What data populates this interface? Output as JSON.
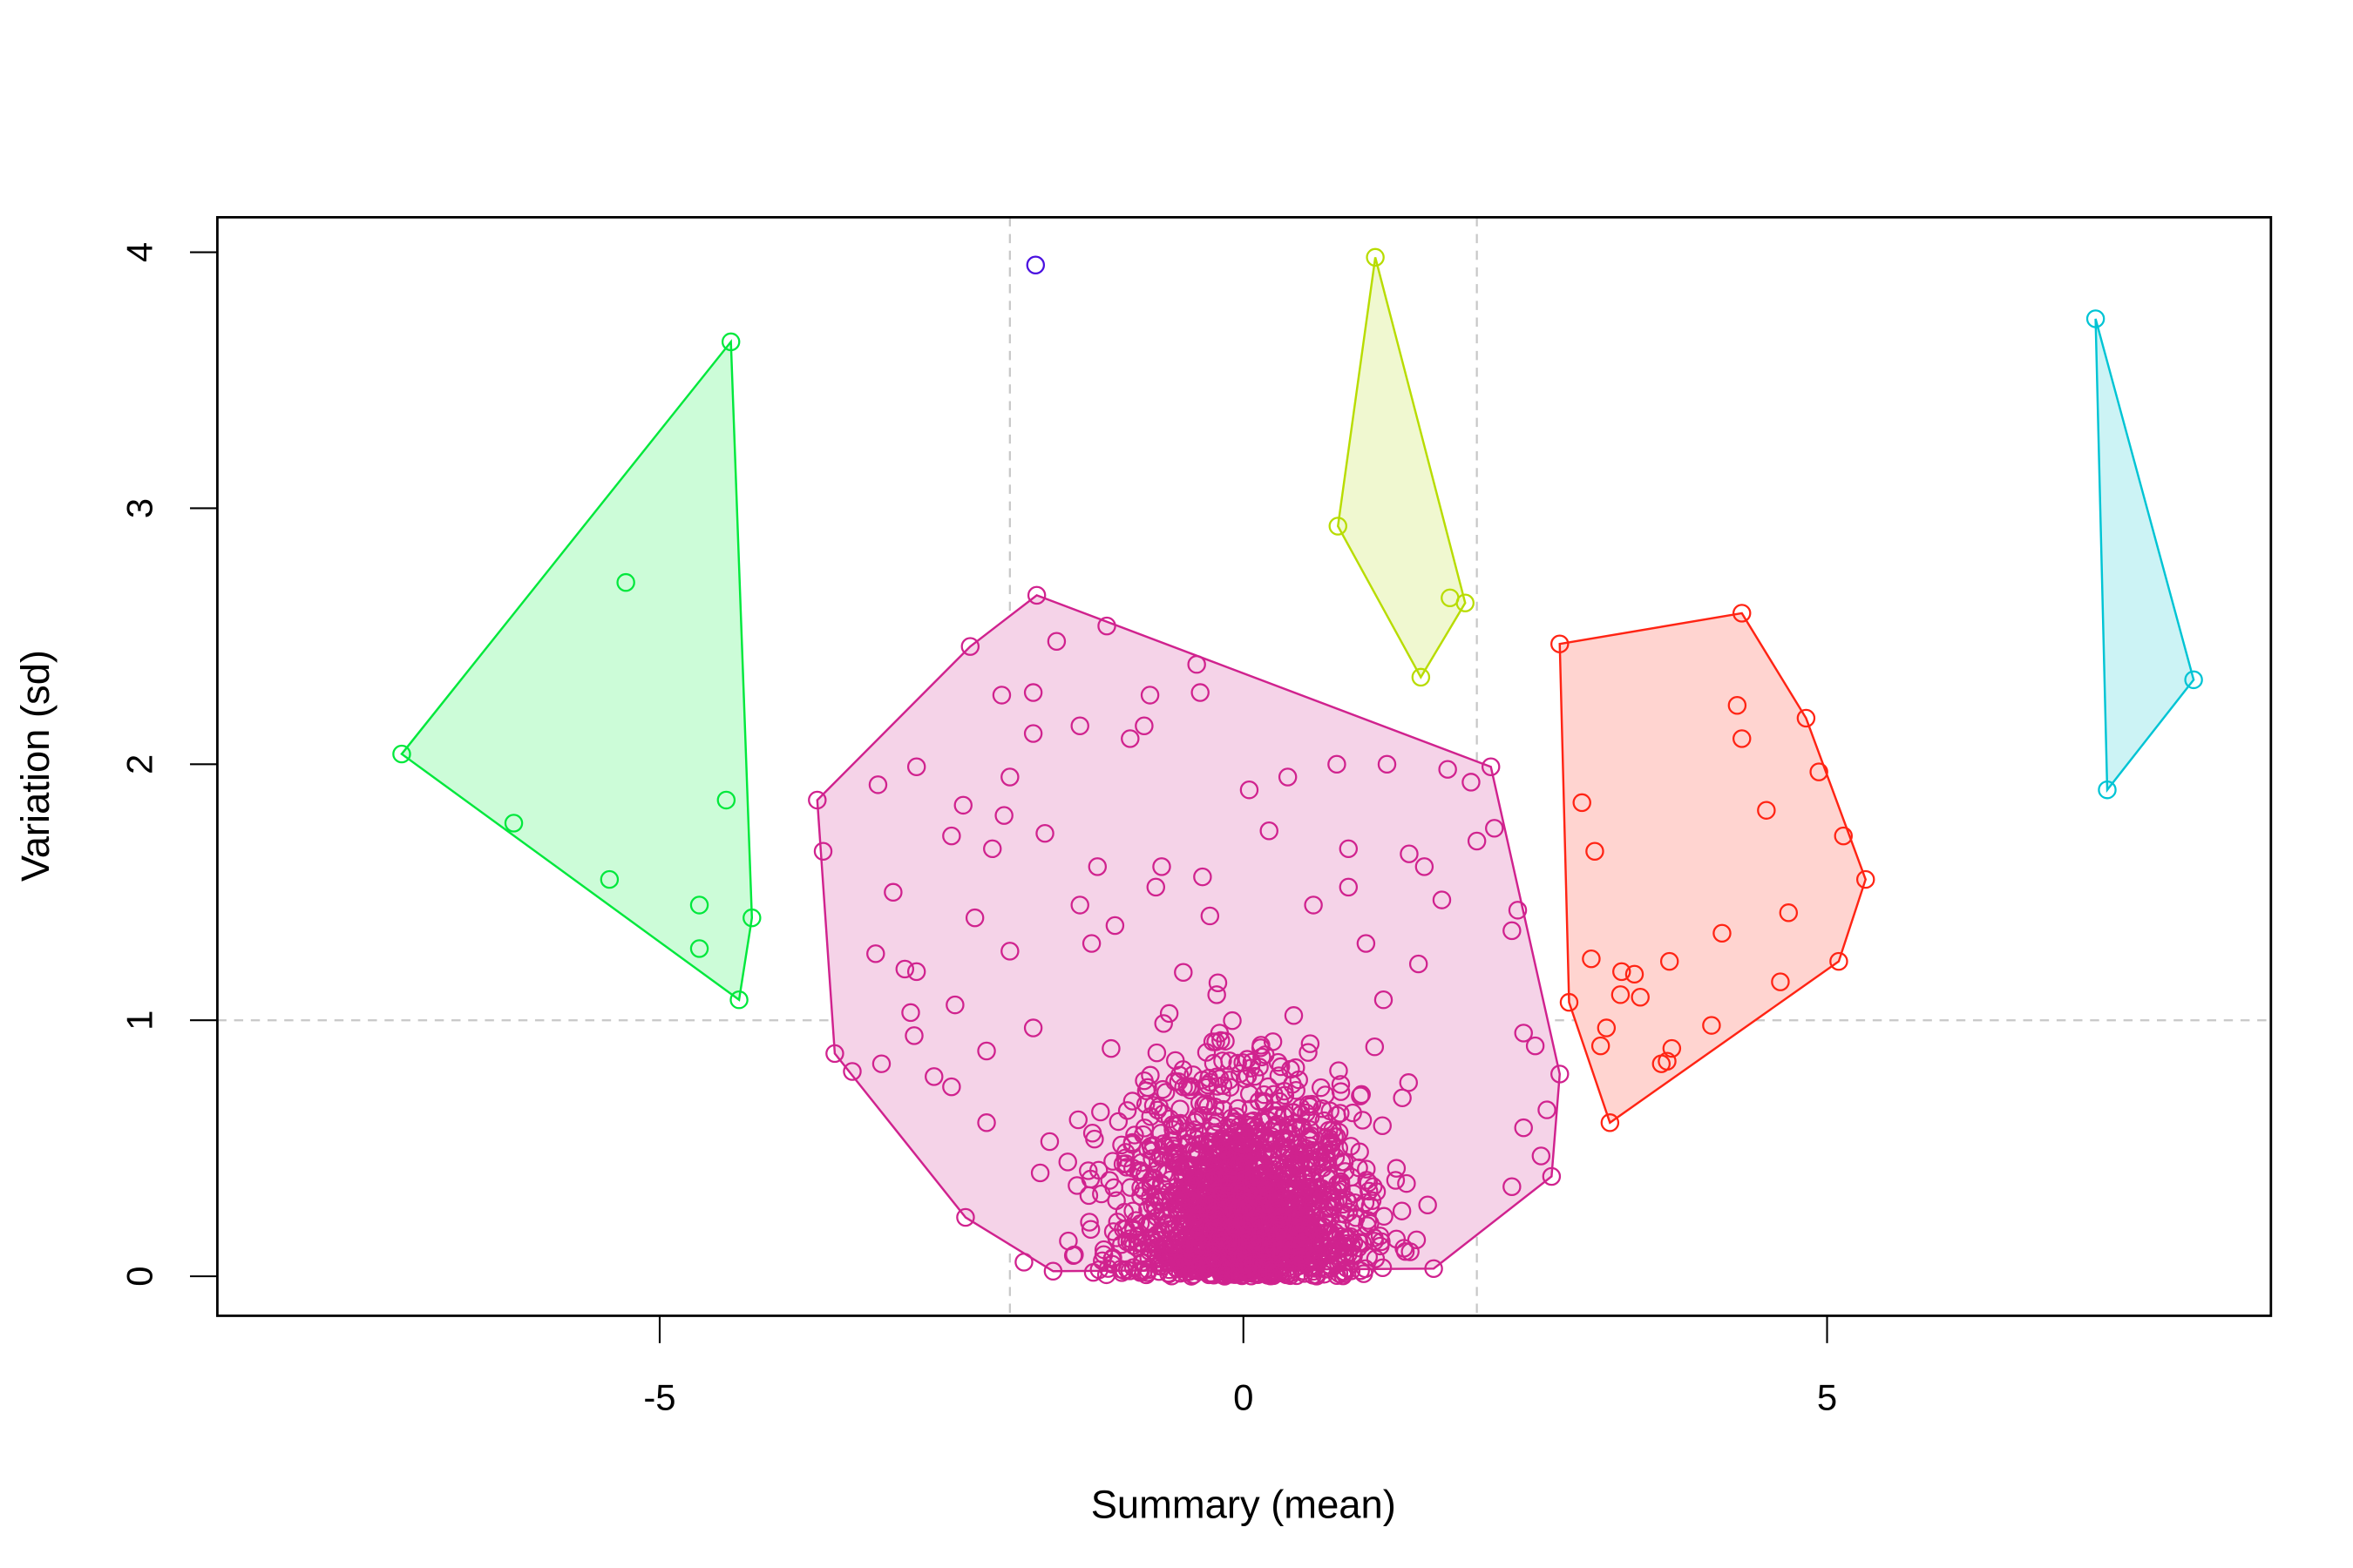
{
  "chart_data": {
    "type": "scatter",
    "title": "",
    "xlabel": "Summary (mean)",
    "ylabel": "Variation (sd)",
    "xlim": [
      -8.8,
      8.8
    ],
    "ylim": [
      -0.15,
      4.15
    ],
    "x_ticks": [
      "-5",
      "0",
      "5"
    ],
    "y_ticks": [
      "0",
      "1",
      "2",
      "3",
      "4"
    ],
    "x_tick_values": [
      -5,
      0,
      5
    ],
    "y_tick_values": [
      0,
      1,
      2,
      3,
      4
    ],
    "grid": false,
    "reference_lines": {
      "vertical": [
        -2,
        2
      ],
      "horizontal": [
        1
      ],
      "style": "dashed",
      "color": "#c8c8c8"
    },
    "legend": "none",
    "marker": "open-circle",
    "series": [
      {
        "color": "#00e83c",
        "fill": "#ccfcd8",
        "hull": [
          [
            -7.21,
            2.04
          ],
          [
            -4.39,
            3.65
          ],
          [
            -4.21,
            1.4
          ],
          [
            -4.32,
            1.08
          ]
        ],
        "points": [
          [
            -7.21,
            2.04
          ],
          [
            -4.39,
            3.65
          ],
          [
            -4.32,
            1.08
          ],
          [
            -4.21,
            1.4
          ],
          [
            -4.43,
            1.86
          ],
          [
            -4.66,
            1.45
          ],
          [
            -4.66,
            1.28
          ],
          [
            -5.29,
            2.71
          ],
          [
            -5.43,
            1.55
          ],
          [
            -6.25,
            1.77
          ]
        ]
      },
      {
        "color": "#4a10e0",
        "fill": "none",
        "hull": [],
        "points": [
          [
            -1.78,
            3.95
          ]
        ]
      },
      {
        "color": "#b8dc00",
        "fill": "#f0f8d0",
        "hull": [
          [
            1.13,
            3.98
          ],
          [
            1.9,
            2.63
          ],
          [
            1.52,
            2.34
          ],
          [
            0.81,
            2.93
          ]
        ],
        "points": [
          [
            1.13,
            3.98
          ],
          [
            0.81,
            2.93
          ],
          [
            1.52,
            2.34
          ],
          [
            1.77,
            2.65
          ],
          [
            1.9,
            2.63
          ]
        ]
      },
      {
        "color": "#00c4d4",
        "fill": "#ccf3f5",
        "hull": [
          [
            7.3,
            3.74
          ],
          [
            8.14,
            2.33
          ],
          [
            7.4,
            1.9
          ]
        ],
        "points": [
          [
            7.3,
            3.74
          ],
          [
            8.14,
            2.33
          ],
          [
            7.4,
            1.9
          ]
        ]
      },
      {
        "color": "#ff2414",
        "fill": "#ffd4d0",
        "hull": [
          [
            2.71,
            2.47
          ],
          [
            4.27,
            2.59
          ],
          [
            4.82,
            2.18
          ],
          [
            5.33,
            1.55
          ],
          [
            5.1,
            1.23
          ],
          [
            3.14,
            0.6
          ],
          [
            2.79,
            1.07
          ]
        ],
        "points": [
          [
            2.71,
            2.47
          ],
          [
            4.27,
            2.59
          ],
          [
            4.82,
            2.18
          ],
          [
            5.33,
            1.55
          ],
          [
            5.1,
            1.23
          ],
          [
            3.14,
            0.6
          ],
          [
            2.79,
            1.07
          ],
          [
            4.23,
            2.23
          ],
          [
            4.27,
            2.1
          ],
          [
            4.93,
            1.97
          ],
          [
            5.14,
            1.72
          ],
          [
            4.48,
            1.82
          ],
          [
            4.67,
            1.42
          ],
          [
            4.1,
            1.34
          ],
          [
            3.65,
            1.23
          ],
          [
            4.6,
            1.15
          ],
          [
            4.01,
            0.98
          ],
          [
            2.9,
            1.85
          ],
          [
            3.01,
            1.66
          ],
          [
            2.98,
            1.24
          ],
          [
            3.24,
            1.19
          ],
          [
            3.35,
            1.18
          ],
          [
            3.4,
            1.09
          ],
          [
            3.23,
            1.1
          ],
          [
            3.11,
            0.97
          ],
          [
            3.06,
            0.9
          ],
          [
            3.67,
            0.89
          ],
          [
            3.63,
            0.84
          ],
          [
            3.58,
            0.83
          ]
        ]
      },
      {
        "color": "#d0228e",
        "fill": "#f5d3e8",
        "hull": [
          [
            -1.77,
            2.66
          ],
          [
            2.12,
            1.99
          ],
          [
            2.71,
            0.79
          ],
          [
            2.64,
            0.39
          ],
          [
            1.63,
            0.03
          ],
          [
            -1.63,
            0.02
          ],
          [
            -2.38,
            0.23
          ],
          [
            -3.5,
            0.87
          ],
          [
            -3.65,
            1.86
          ],
          [
            -2.34,
            2.46
          ]
        ],
        "points": [
          [
            -1.77,
            2.66
          ],
          [
            2.12,
            1.99
          ],
          [
            2.71,
            0.79
          ],
          [
            2.64,
            0.39
          ],
          [
            1.63,
            0.03
          ],
          [
            -1.63,
            0.02
          ],
          [
            -2.38,
            0.23
          ],
          [
            -3.5,
            0.87
          ],
          [
            -3.65,
            1.86
          ],
          [
            -2.34,
            2.46
          ],
          [
            -1.8,
            2.28
          ],
          [
            -2.07,
            2.27
          ],
          [
            -1.6,
            2.48
          ],
          [
            -1.17,
            2.54
          ],
          [
            -0.8,
            2.27
          ],
          [
            -0.97,
            2.1
          ],
          [
            -0.85,
            2.15
          ],
          [
            -0.4,
            2.39
          ],
          [
            -0.37,
            2.28
          ],
          [
            -1.4,
            2.15
          ],
          [
            -1.8,
            2.12
          ],
          [
            -2.0,
            1.95
          ],
          [
            -2.05,
            1.8
          ],
          [
            -3.13,
            1.92
          ],
          [
            -2.8,
            1.99
          ],
          [
            -2.4,
            1.84
          ],
          [
            -2.5,
            1.72
          ],
          [
            -2.15,
            1.67
          ],
          [
            -1.7,
            1.73
          ],
          [
            -3.0,
            1.5
          ],
          [
            -3.6,
            1.66
          ],
          [
            -2.3,
            1.4
          ],
          [
            -2.0,
            1.27
          ],
          [
            -3.15,
            1.26
          ],
          [
            -2.9,
            1.2
          ],
          [
            -2.8,
            1.19
          ],
          [
            -2.85,
            1.03
          ],
          [
            -2.47,
            1.06
          ],
          [
            -3.35,
            0.8
          ],
          [
            -3.1,
            0.83
          ],
          [
            -2.82,
            0.94
          ],
          [
            -2.65,
            0.78
          ],
          [
            -2.5,
            0.74
          ],
          [
            -2.2,
            0.6
          ],
          [
            -2.2,
            0.88
          ],
          [
            -1.8,
            0.97
          ],
          [
            -1.4,
            1.45
          ],
          [
            -1.25,
            1.6
          ],
          [
            0.05,
            1.9
          ],
          [
            0.38,
            1.95
          ],
          [
            0.22,
            1.74
          ],
          [
            0.8,
            2.0
          ],
          [
            1.23,
            2.0
          ],
          [
            1.42,
            1.65
          ],
          [
            1.75,
            1.98
          ],
          [
            1.95,
            1.93
          ],
          [
            2.0,
            1.7
          ],
          [
            2.15,
            1.75
          ],
          [
            2.35,
            1.43
          ],
          [
            2.3,
            1.35
          ],
          [
            1.55,
            1.6
          ],
          [
            1.7,
            1.47
          ],
          [
            2.4,
            0.95
          ],
          [
            2.5,
            0.9
          ],
          [
            2.6,
            0.65
          ],
          [
            2.55,
            0.47
          ],
          [
            2.3,
            0.35
          ],
          [
            2.4,
            0.58
          ],
          [
            -1.1,
            1.37
          ],
          [
            -0.75,
            1.52
          ],
          [
            -0.35,
            1.56
          ],
          [
            0.6,
            1.45
          ],
          [
            0.9,
            1.67
          ],
          [
            1.05,
            1.3
          ],
          [
            1.5,
            1.22
          ],
          [
            1.2,
            1.08
          ],
          [
            -0.7,
            1.6
          ],
          [
            -1.3,
            1.3
          ],
          [
            0.9,
            1.52
          ]
        ],
        "dense_core": {
          "x_center": 0,
          "x_sd": 0.5,
          "y_sd": 0.35
        }
      }
    ]
  }
}
